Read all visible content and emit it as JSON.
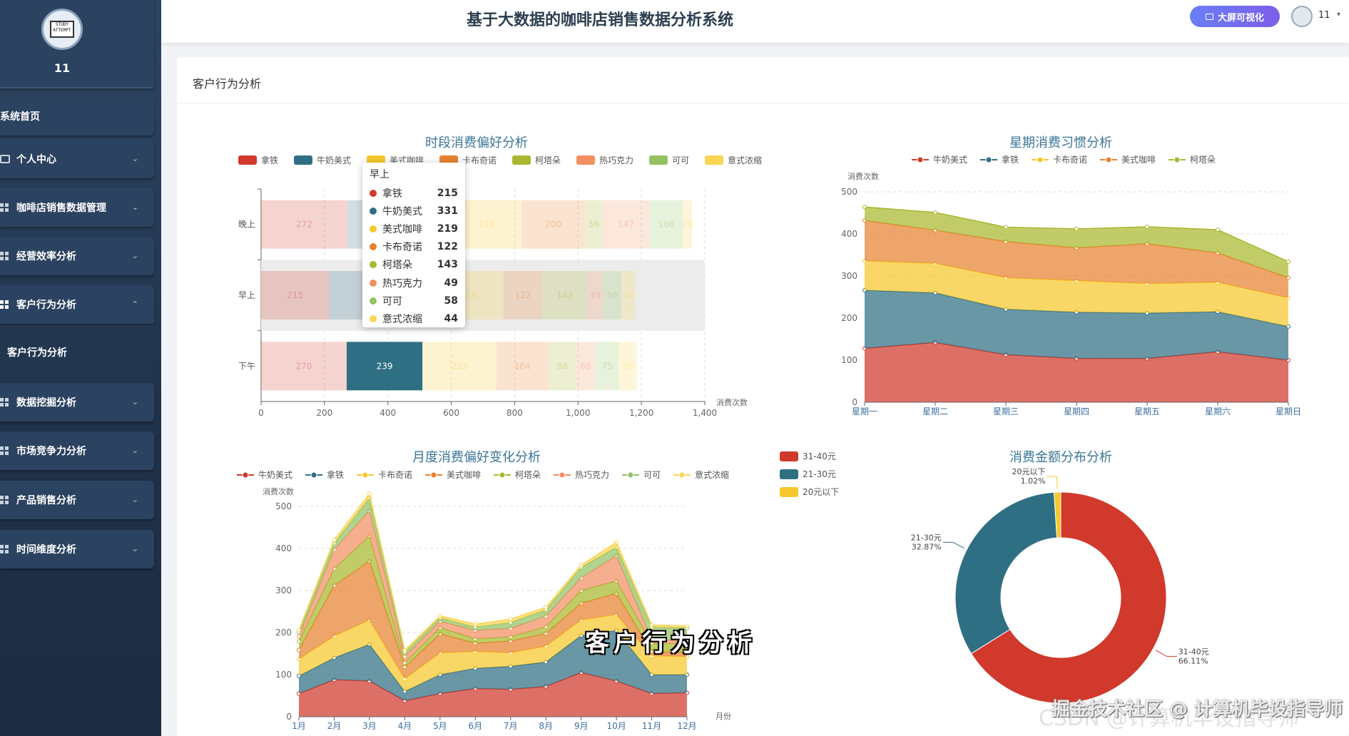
{
  "user": {
    "name": "11",
    "avatar_text": "STUDY ATTEMPT"
  },
  "menu": {
    "home": "系统首页",
    "personal": "个人中心",
    "coffee_data": "咖啡店销售数据管理",
    "efficiency": "经营效率分析",
    "customer": "客户行为分析",
    "customer_sub": "客户行为分析",
    "mining": "数据挖掘分析",
    "market": "市场竞争力分析",
    "product": "产品销售分析",
    "time": "时间维度分析"
  },
  "topbar": {
    "title": "基于大数据的咖啡店销售数据分析系统",
    "bigscreen": "大屏可视化",
    "username": "11"
  },
  "panel": {
    "title": "客户行为分析"
  },
  "tooltip": {
    "header": "早上",
    "rows": [
      {
        "name": "拿铁",
        "value": "215",
        "color": "#d0392b"
      },
      {
        "name": "牛奶美式",
        "value": "331",
        "color": "#2f6f84"
      },
      {
        "name": "美式咖啡",
        "value": "219",
        "color": "#f7c82b"
      },
      {
        "name": "卡布奇诺",
        "value": "122",
        "color": "#e7822f"
      },
      {
        "name": "柯塔朵",
        "value": "143",
        "color": "#a9b82f"
      },
      {
        "name": "热巧克力",
        "value": "49",
        "color": "#f39063"
      },
      {
        "name": "可可",
        "value": "58",
        "color": "#93c262"
      },
      {
        "name": "意式浓缩",
        "value": "44",
        "color": "#fbd553"
      }
    ]
  },
  "overlay_caption": "客户行为分析",
  "watermark": "掘金技术社区 @ 计算机毕设指导师",
  "watermark_bg": "CSDN @计算机毕设指导师",
  "chart_data": [
    {
      "id": "period",
      "type": "bar",
      "orientation": "horizontal",
      "stacked": true,
      "title": "时段消费偏好分析",
      "xlabel": "消费次数",
      "xlim": [
        0,
        1400
      ],
      "xticks": [
        "0",
        "200",
        "400",
        "600",
        "800",
        "1,000",
        "1,200",
        "1,400"
      ],
      "categories": [
        "晚上",
        "早上",
        "下午"
      ],
      "series": [
        {
          "name": "拿铁",
          "color": "#d0392b",
          "values": [
            272,
            215,
            270
          ]
        },
        {
          "name": "牛奶美式",
          "color": "#2f6f84",
          "values": [
            331,
            331,
            239
          ]
        },
        {
          "name": "美式咖啡",
          "color": "#f7c82b",
          "values": [
            219,
            219,
            233
          ]
        },
        {
          "name": "卡布奇诺",
          "color": "#e7822f",
          "values": [
            200,
            122,
            164
          ]
        },
        {
          "name": "柯塔朵",
          "color": "#a9b82f",
          "values": [
            56,
            143,
            88
          ]
        },
        {
          "name": "热巧克力",
          "color": "#f39063",
          "values": [
            147,
            49,
            60
          ]
        },
        {
          "name": "可可",
          "color": "#93c262",
          "values": [
            106,
            58,
            75
          ]
        },
        {
          "name": "意式浓缩",
          "color": "#fbd553",
          "values": [
            29,
            44,
            56
          ]
        }
      ],
      "highlight_category": "早上"
    },
    {
      "id": "weekday",
      "type": "area",
      "stacked": true,
      "title": "星期消费习惯分析",
      "ylabel": "消费次数",
      "ylim": [
        0,
        500
      ],
      "yticks": [
        "0",
        "100",
        "200",
        "300",
        "400",
        "500"
      ],
      "x": [
        "星期一",
        "星期二",
        "星期三",
        "星期四",
        "星期五",
        "星期六",
        "星期日"
      ],
      "series": [
        {
          "name": "牛奶美式",
          "color": "#d0392b",
          "values": [
            128,
            142,
            113,
            104,
            104,
            120,
            100
          ]
        },
        {
          "name": "拿铁",
          "color": "#2f6f84",
          "values": [
            138,
            118,
            108,
            110,
            108,
            95,
            80
          ]
        },
        {
          "name": "卡布奇诺",
          "color": "#f7c82b",
          "values": [
            70,
            70,
            75,
            75,
            70,
            70,
            68
          ]
        },
        {
          "name": "美式咖啡",
          "color": "#e7822f",
          "values": [
            96,
            79,
            86,
            78,
            95,
            70,
            48
          ]
        },
        {
          "name": "柯塔朵",
          "color": "#a9b82f",
          "values": [
            32,
            42,
            34,
            45,
            40,
            55,
            38
          ]
        }
      ]
    },
    {
      "id": "monthly",
      "type": "area",
      "stacked": true,
      "title": "月度消费偏好变化分析",
      "ylabel": "消费次数",
      "xlabel": "月份",
      "ylim": [
        0,
        500
      ],
      "yticks": [
        "0",
        "100",
        "200",
        "300",
        "400",
        "500"
      ],
      "x": [
        "1月",
        "2月",
        "3月",
        "4月",
        "5月",
        "6月",
        "7月",
        "8月",
        "9月",
        "10月",
        "11月",
        "12月"
      ],
      "series": [
        {
          "name": "牛奶美式",
          "color": "#d0392b",
          "values": [
            55,
            88,
            85,
            38,
            55,
            67,
            65,
            72,
            105,
            85,
            55,
            57
          ]
        },
        {
          "name": "拿铁",
          "color": "#2f6f84",
          "values": [
            42,
            52,
            87,
            22,
            45,
            48,
            55,
            58,
            88,
            120,
            45,
            43
          ]
        },
        {
          "name": "卡布奇诺",
          "color": "#f7c82b",
          "values": [
            40,
            52,
            58,
            30,
            52,
            40,
            32,
            38,
            37,
            38,
            45,
            43
          ]
        },
        {
          "name": "美式咖啡",
          "color": "#e7822f",
          "values": [
            22,
            120,
            140,
            28,
            45,
            20,
            28,
            30,
            40,
            50,
            10,
            10
          ]
        },
        {
          "name": "柯塔朵",
          "color": "#a9b82f",
          "values": [
            20,
            40,
            60,
            10,
            15,
            10,
            10,
            16,
            30,
            30,
            20,
            20
          ]
        },
        {
          "name": "热巧克力",
          "color": "#f39063",
          "values": [
            12,
            45,
            60,
            15,
            15,
            20,
            20,
            25,
            30,
            60,
            8,
            8
          ]
        },
        {
          "name": "可可",
          "color": "#93c262",
          "values": [
            10,
            15,
            30,
            10,
            8,
            8,
            14,
            15,
            25,
            20,
            30,
            30
          ]
        },
        {
          "name": "意式浓缩",
          "color": "#fbd553",
          "values": [
            5,
            8,
            10,
            5,
            5,
            7,
            8,
            6,
            5,
            12,
            5,
            5
          ]
        }
      ]
    },
    {
      "id": "amount",
      "type": "pie",
      "donut": true,
      "title": "消费金额分布分析",
      "legend": [
        "31-40元",
        "21-30元",
        "20元以下"
      ],
      "slices": [
        {
          "name": "31-40元",
          "value": 66.11,
          "label": "66.11%",
          "color": "#d0392b"
        },
        {
          "name": "21-30元",
          "value": 32.87,
          "label": "32.87%",
          "color": "#2f6f84"
        },
        {
          "name": "20元以下",
          "value": 1.02,
          "label": "1.02%",
          "color": "#f7c82b"
        }
      ]
    }
  ]
}
